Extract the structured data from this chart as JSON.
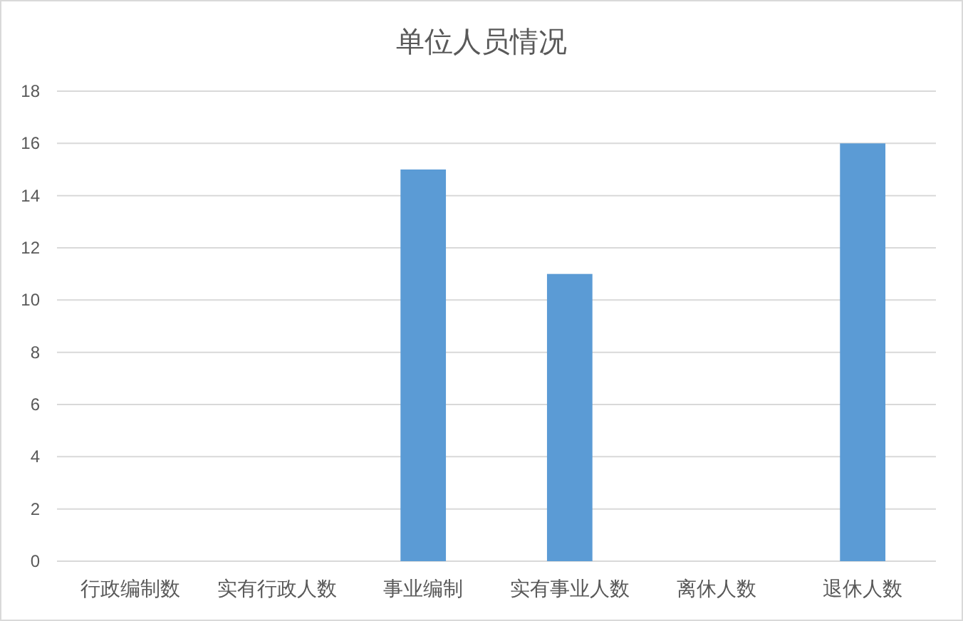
{
  "chart_data": {
    "type": "bar",
    "title": "单位人员情况",
    "categories": [
      "行政编制数",
      "实有行政人数",
      "事业编制",
      "实有事业人数",
      "离休人数",
      "退休人数"
    ],
    "values": [
      0,
      0,
      15,
      11,
      0,
      16
    ],
    "color": "#5b9bd5",
    "ylim": [
      0,
      18
    ],
    "yticks": [
      0,
      2,
      4,
      6,
      8,
      10,
      12,
      14,
      16,
      18
    ],
    "grid": "y"
  }
}
